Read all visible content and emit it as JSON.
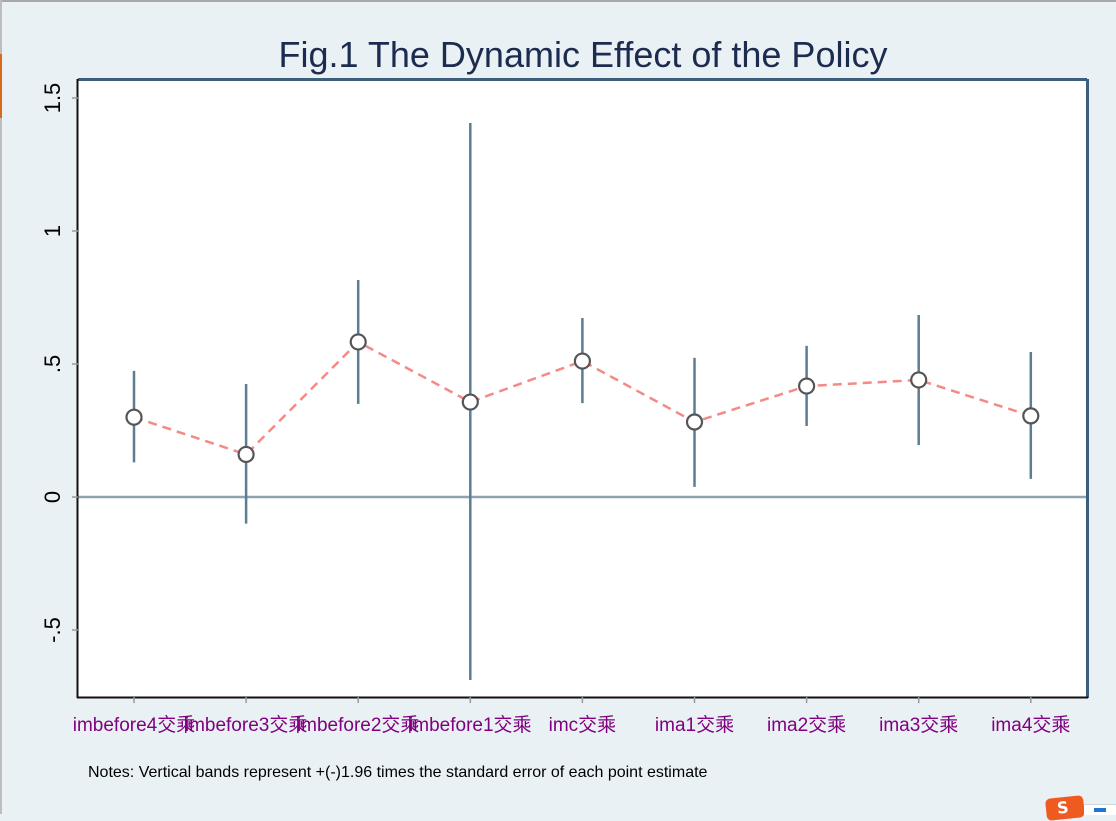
{
  "chart_data": {
    "type": "scatter",
    "title": "Fig.1 The Dynamic Effect of the Policy",
    "xlabel": "",
    "ylabel": "",
    "note": "Notes: Vertical bands represent +(-)1.96 times the standard error of each point estimate",
    "categories": [
      "imbefore4交乘",
      "imbefore3交乘",
      "imbefore2交乘",
      "imbefore1交乘",
      "imc交乘",
      "ima1交乘",
      "ima2交乘",
      "ima3交乘",
      "ima4交乘"
    ],
    "series": [
      {
        "name": "point estimate",
        "values": [
          0.3,
          0.16,
          0.583,
          0.357,
          0.511,
          0.282,
          0.417,
          0.44,
          0.305
        ],
        "ci_upper": [
          0.474,
          0.425,
          0.816,
          1.406,
          0.673,
          0.523,
          0.568,
          0.684,
          0.545
        ],
        "ci_lower": [
          0.13,
          -0.1,
          0.35,
          -0.688,
          0.353,
          0.038,
          0.267,
          0.195,
          0.068
        ]
      }
    ],
    "yticks": [
      -0.5,
      0,
      0.5,
      1,
      1.5
    ],
    "ytick_labels": [
      "-.5",
      "0",
      ".5",
      "1",
      "1.5"
    ],
    "ylim": [
      -0.75,
      1.57
    ],
    "reference_line_y": 0,
    "grid": false,
    "legend": "none",
    "colors": {
      "connector_line": "#f48a86",
      "ci_bars": "#5d7d92",
      "marker_edge": "#555555",
      "marker_fill": "#ffffff",
      "reference_line": "#8ea3b0",
      "xtick_label": "#800080",
      "title": "#1c2b50",
      "plot_frame_top_right": "#3d5f7c"
    }
  }
}
